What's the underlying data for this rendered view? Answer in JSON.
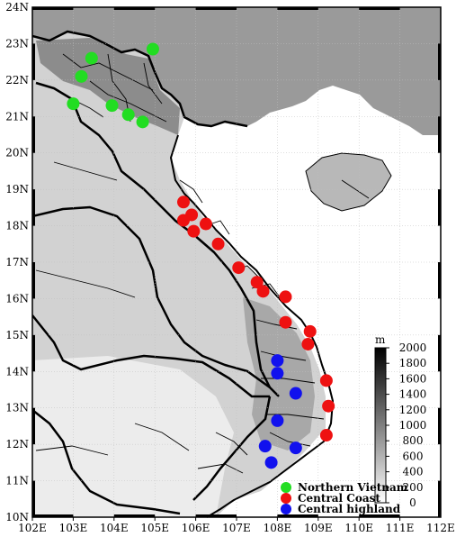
{
  "map": {
    "lon_ticks": [
      "102E",
      "103E",
      "104E",
      "105E",
      "106E",
      "107E",
      "108E",
      "109E",
      "110E",
      "111E",
      "112E"
    ],
    "lat_ticks": [
      "10N",
      "11N",
      "12N",
      "13N",
      "14N",
      "15N",
      "16N",
      "17N",
      "18N",
      "19N",
      "20N",
      "21N",
      "22N",
      "23N",
      "24N"
    ],
    "lon_range": [
      102,
      112
    ],
    "lat_range": [
      10,
      24
    ]
  },
  "colorbar": {
    "unit": "m",
    "ticks": [
      "0",
      "200",
      "400",
      "600",
      "800",
      "1000",
      "1200",
      "1400",
      "1600",
      "1800",
      "2000"
    ],
    "range": [
      0,
      2000
    ]
  },
  "legend": [
    {
      "label": "Northern Vietnam",
      "color": "#22dd22"
    },
    {
      "label": "Central Coast",
      "color": "#ee1111"
    },
    {
      "label": "Central highland",
      "color": "#1111ee"
    }
  ],
  "stations": {
    "northern": [
      [
        103.45,
        22.6
      ],
      [
        103.2,
        22.1
      ],
      [
        103.0,
        21.35
      ],
      [
        103.95,
        21.3
      ],
      [
        104.35,
        21.05
      ],
      [
        104.7,
        20.85
      ],
      [
        104.95,
        22.85
      ]
    ],
    "central_coast": [
      [
        105.7,
        18.65
      ],
      [
        105.9,
        18.3
      ],
      [
        105.7,
        18.15
      ],
      [
        106.25,
        18.05
      ],
      [
        105.95,
        17.85
      ],
      [
        106.55,
        17.5
      ],
      [
        107.05,
        16.85
      ],
      [
        107.5,
        16.45
      ],
      [
        107.65,
        16.2
      ],
      [
        108.2,
        16.05
      ],
      [
        108.2,
        15.35
      ],
      [
        108.8,
        15.1
      ],
      [
        108.75,
        14.75
      ],
      [
        109.2,
        13.75
      ],
      [
        109.25,
        13.05
      ],
      [
        109.2,
        12.25
      ]
    ],
    "central_highland": [
      [
        108.0,
        14.3
      ],
      [
        108.0,
        13.95
      ],
      [
        108.45,
        13.4
      ],
      [
        108.0,
        12.65
      ],
      [
        107.7,
        11.95
      ],
      [
        108.45,
        11.9
      ],
      [
        107.85,
        11.5
      ]
    ]
  }
}
